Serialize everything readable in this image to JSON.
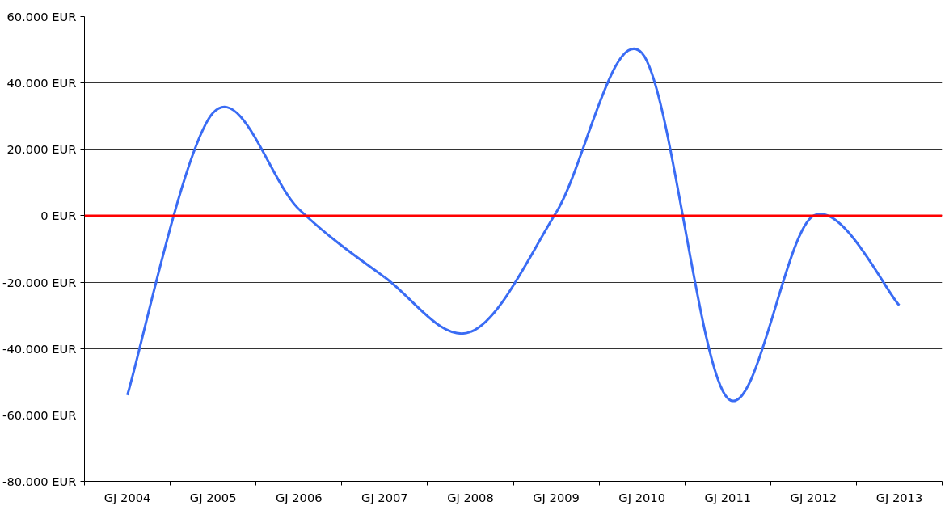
{
  "chart_data": {
    "type": "line",
    "categories": [
      "GJ 2004",
      "GJ 2005",
      "GJ 2006",
      "GJ 2007",
      "GJ 2008",
      "GJ 2009",
      "GJ 2010",
      "GJ 2011",
      "GJ 2012",
      "GJ 2013"
    ],
    "series": [
      {
        "color": "#3a6cf4",
        "values": [
          -54000,
          31000,
          2000,
          -18500,
          -35000,
          1000,
          49000,
          -55000,
          0,
          -27000
        ]
      }
    ],
    "ylim": [
      -80000,
      60000
    ],
    "yticks": [
      {
        "value": -80000,
        "label": "-80.000 EUR"
      },
      {
        "value": -60000,
        "label": "-60.000 EUR"
      },
      {
        "value": -40000,
        "label": "-40.000 EUR"
      },
      {
        "value": -20000,
        "label": "-20.000 EUR"
      },
      {
        "value": 0,
        "label": "0 EUR"
      },
      {
        "value": 20000,
        "label": "20.000 EUR"
      },
      {
        "value": 40000,
        "label": "40.000 EUR"
      },
      {
        "value": 60000,
        "label": "60.000 EUR"
      }
    ],
    "ref_lines": [
      {
        "axis": "y",
        "value": 0,
        "color": "#ff0000"
      }
    ],
    "grid": "y",
    "marker": "none",
    "line_style": "solid"
  }
}
